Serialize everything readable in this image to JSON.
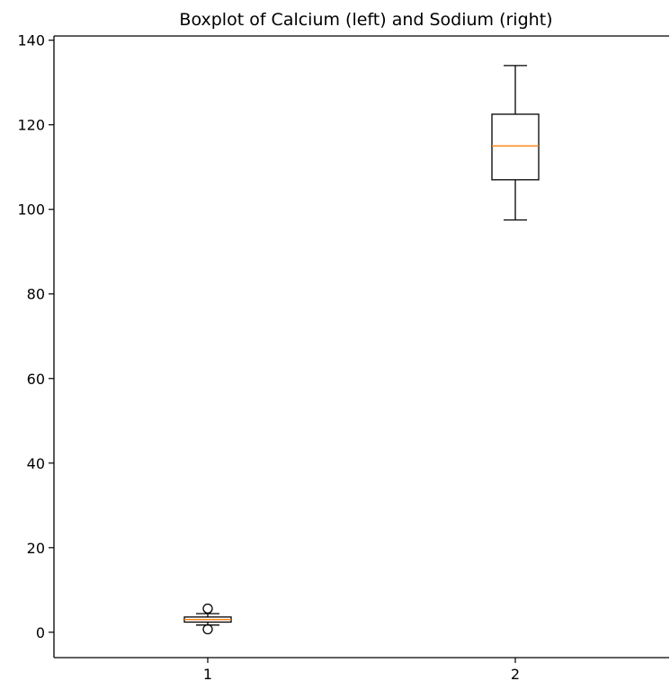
{
  "chart_data": {
    "type": "boxplot",
    "title": "Boxplot of Calcium (left) and Sodium (right)",
    "xlabel": "",
    "ylabel": "",
    "categories": [
      "1",
      "2"
    ],
    "ylim": [
      -6,
      141
    ],
    "yticks": [
      0,
      20,
      40,
      60,
      80,
      100,
      120,
      140
    ],
    "grid": false,
    "boxes": [
      {
        "position": 1,
        "whisker_low": 1.7,
        "q1": 2.4,
        "median": 3.0,
        "q3": 3.6,
        "whisker_high": 4.4,
        "outliers": [
          0.7,
          5.6
        ]
      },
      {
        "position": 2,
        "whisker_low": 97.5,
        "q1": 107.0,
        "median": 115.0,
        "q3": 122.5,
        "whisker_high": 134.0,
        "outliers": []
      }
    ],
    "colors": {
      "box": "#000000",
      "median": "#ff7f0e",
      "axis": "#000000",
      "outlier": "#000000"
    }
  }
}
